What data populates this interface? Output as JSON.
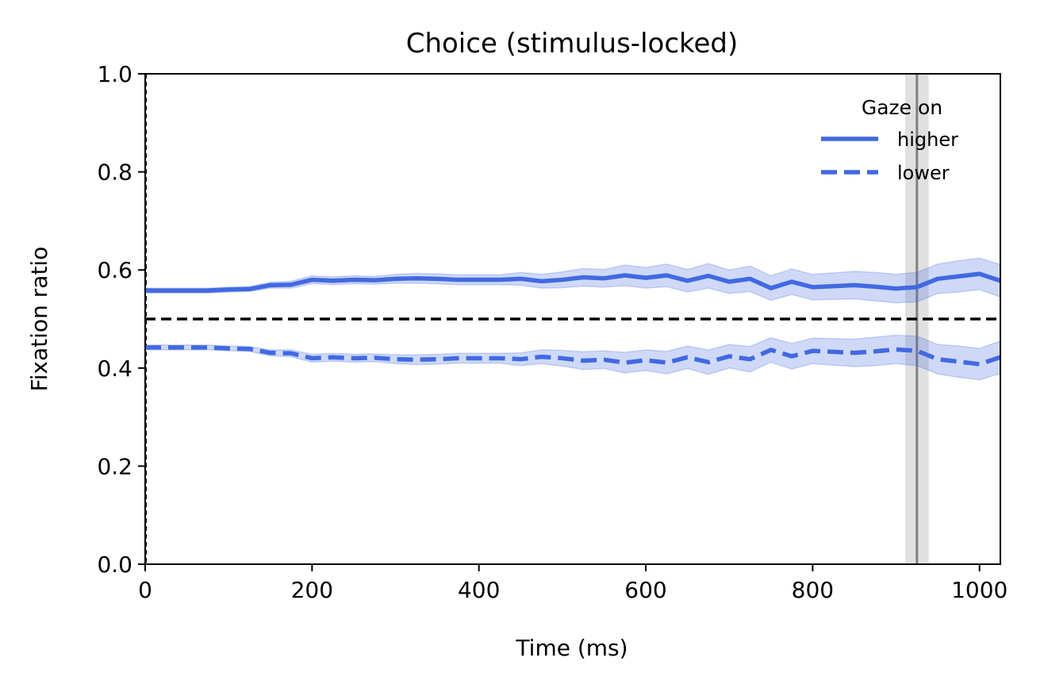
{
  "chart_data": {
    "type": "line",
    "title": "Choice (stimulus-locked)",
    "xlabel": "Time (ms)",
    "ylabel": "Fixation ratio",
    "xlim": [
      0,
      1025
    ],
    "ylim": [
      0.0,
      1.0
    ],
    "xticks": [
      0,
      200,
      400,
      600,
      800,
      1000
    ],
    "yticks": [
      0.0,
      0.2,
      0.4,
      0.6,
      0.8,
      1.0
    ],
    "xtick_labels": [
      "0",
      "200",
      "400",
      "600",
      "800",
      "1000"
    ],
    "ytick_labels": [
      "0.0",
      "0.2",
      "0.4",
      "0.6",
      "0.8",
      "1.0"
    ],
    "grid": false,
    "legend": {
      "title": "Gaze on",
      "placement": "top-right",
      "entries": [
        "higher",
        "lower"
      ]
    },
    "reference_line_y": 0.5,
    "vline_x": 925,
    "vline_band": [
      911,
      939
    ],
    "x": [
      0,
      25,
      50,
      75,
      100,
      125,
      150,
      175,
      200,
      225,
      250,
      275,
      300,
      325,
      350,
      375,
      400,
      425,
      450,
      475,
      500,
      525,
      550,
      575,
      600,
      625,
      650,
      675,
      700,
      725,
      750,
      775,
      800,
      825,
      850,
      875,
      900,
      925,
      950,
      975,
      1000,
      1025
    ],
    "series": [
      {
        "name": "higher",
        "style": "solid",
        "color": "#4169e1",
        "values": [
          0.558,
          0.558,
          0.558,
          0.558,
          0.56,
          0.561,
          0.569,
          0.57,
          0.58,
          0.578,
          0.58,
          0.579,
          0.582,
          0.583,
          0.582,
          0.58,
          0.58,
          0.58,
          0.582,
          0.577,
          0.58,
          0.585,
          0.583,
          0.589,
          0.584,
          0.589,
          0.578,
          0.588,
          0.576,
          0.582,
          0.563,
          0.576,
          0.565,
          0.567,
          0.569,
          0.566,
          0.562,
          0.565,
          0.582,
          0.587,
          0.592,
          0.578
        ],
        "lower": [
          0.553,
          0.553,
          0.553,
          0.553,
          0.555,
          0.556,
          0.563,
          0.563,
          0.572,
          0.57,
          0.572,
          0.571,
          0.573,
          0.573,
          0.572,
          0.57,
          0.57,
          0.57,
          0.569,
          0.563,
          0.564,
          0.567,
          0.565,
          0.568,
          0.563,
          0.566,
          0.555,
          0.563,
          0.552,
          0.556,
          0.538,
          0.55,
          0.539,
          0.54,
          0.541,
          0.537,
          0.533,
          0.535,
          0.552,
          0.555,
          0.56,
          0.545
        ],
        "upper": [
          0.563,
          0.563,
          0.563,
          0.563,
          0.565,
          0.566,
          0.575,
          0.577,
          0.588,
          0.586,
          0.588,
          0.587,
          0.591,
          0.593,
          0.592,
          0.59,
          0.59,
          0.59,
          0.595,
          0.591,
          0.596,
          0.603,
          0.601,
          0.61,
          0.605,
          0.612,
          0.601,
          0.613,
          0.6,
          0.608,
          0.588,
          0.602,
          0.591,
          0.594,
          0.597,
          0.595,
          0.591,
          0.595,
          0.612,
          0.619,
          0.624,
          0.611
        ]
      },
      {
        "name": "lower",
        "style": "dashed",
        "color": "#4169e1",
        "values": [
          0.442,
          0.442,
          0.442,
          0.442,
          0.44,
          0.439,
          0.431,
          0.43,
          0.42,
          0.422,
          0.42,
          0.421,
          0.418,
          0.417,
          0.418,
          0.42,
          0.42,
          0.42,
          0.418,
          0.423,
          0.42,
          0.415,
          0.417,
          0.411,
          0.416,
          0.411,
          0.422,
          0.412,
          0.424,
          0.418,
          0.437,
          0.424,
          0.435,
          0.433,
          0.431,
          0.434,
          0.438,
          0.435,
          0.418,
          0.413,
          0.408,
          0.422
        ],
        "lower": [
          0.437,
          0.437,
          0.437,
          0.437,
          0.435,
          0.434,
          0.425,
          0.423,
          0.412,
          0.414,
          0.412,
          0.413,
          0.409,
          0.407,
          0.408,
          0.41,
          0.41,
          0.41,
          0.405,
          0.409,
          0.404,
          0.397,
          0.399,
          0.39,
          0.395,
          0.388,
          0.399,
          0.387,
          0.4,
          0.392,
          0.412,
          0.398,
          0.409,
          0.406,
          0.403,
          0.405,
          0.409,
          0.405,
          0.388,
          0.381,
          0.376,
          0.389
        ],
        "upper": [
          0.447,
          0.447,
          0.447,
          0.447,
          0.445,
          0.444,
          0.437,
          0.437,
          0.428,
          0.43,
          0.428,
          0.429,
          0.427,
          0.427,
          0.428,
          0.43,
          0.43,
          0.43,
          0.431,
          0.437,
          0.436,
          0.433,
          0.435,
          0.432,
          0.437,
          0.434,
          0.445,
          0.437,
          0.448,
          0.444,
          0.462,
          0.45,
          0.461,
          0.46,
          0.459,
          0.463,
          0.467,
          0.465,
          0.448,
          0.445,
          0.44,
          0.455
        ]
      }
    ]
  }
}
